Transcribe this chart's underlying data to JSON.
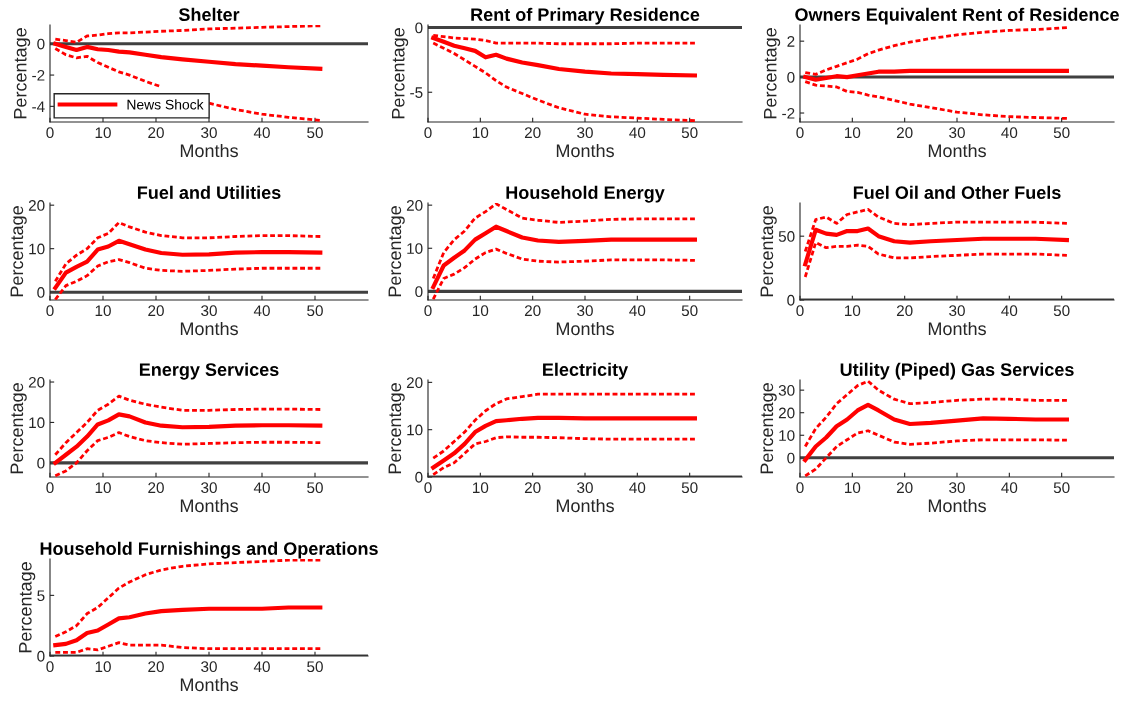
{
  "chart_data": [
    {
      "type": "line",
      "title": "Shelter",
      "xlabel": "Months",
      "ylabel": "Percentage",
      "legend": "bottom left",
      "x": [
        1,
        3,
        5,
        7,
        9,
        11,
        13,
        15,
        18,
        21,
        25,
        30,
        35,
        40,
        45,
        51
      ],
      "xlim": [
        0,
        60
      ],
      "xticks": [
        0,
        10,
        20,
        30,
        40,
        50
      ],
      "ylim": [
        -5,
        1.2
      ],
      "yticks": [
        -4,
        -2,
        0
      ],
      "ref_lines": [
        {
          "axis": "y",
          "value": 0,
          "color": "#404040"
        }
      ],
      "series": [
        {
          "name": "News Shock",
          "color": "#ff0000",
          "line_style": "solid",
          "values": [
            0,
            -0.2,
            -0.4,
            -0.2,
            -0.35,
            -0.4,
            -0.5,
            -0.55,
            -0.7,
            -0.85,
            -1.0,
            -1.15,
            -1.3,
            -1.4,
            -1.5,
            -1.6
          ]
        },
        {
          "color": "#ff0000",
          "line_style": "dashed",
          "values": [
            0.3,
            0.2,
            0.1,
            0.5,
            0.55,
            0.65,
            0.7,
            0.7,
            0.75,
            0.8,
            0.85,
            0.95,
            1.0,
            1.05,
            1.1,
            1.15
          ]
        },
        {
          "color": "#ff0000",
          "line_style": "dashed",
          "values": [
            -0.3,
            -0.7,
            -0.9,
            -0.8,
            -1.2,
            -1.5,
            -1.8,
            -2.0,
            -2.4,
            -2.75,
            null,
            -3.8,
            -4.2,
            -4.5,
            -4.7,
            -4.9
          ]
        }
      ]
    },
    {
      "type": "line",
      "title": "Rent of Primary Residence",
      "xlabel": "Months",
      "ylabel": "Percentage",
      "x": [
        1,
        3,
        5,
        7,
        9,
        11,
        13,
        15,
        18,
        21,
        25,
        30,
        35,
        40,
        45,
        51
      ],
      "xlim": [
        0,
        60
      ],
      "xticks": [
        0,
        10,
        20,
        30,
        40,
        50
      ],
      "ylim": [
        -7.3,
        0.2
      ],
      "yticks": [
        -5,
        0
      ],
      "ref_lines": [
        {
          "axis": "y",
          "value": 0,
          "color": "#404040"
        }
      ],
      "series": [
        {
          "color": "#ff0000",
          "line_style": "solid",
          "values": [
            -0.8,
            -1.1,
            -1.4,
            -1.6,
            -1.8,
            -2.3,
            -2.1,
            -2.4,
            -2.7,
            -2.9,
            -3.2,
            -3.4,
            -3.55,
            -3.6,
            -3.65,
            -3.7
          ]
        },
        {
          "color": "#ff0000",
          "line_style": "dashed",
          "values": [
            -0.6,
            -0.7,
            -0.8,
            -0.85,
            -0.9,
            -1.0,
            -1.2,
            -1.2,
            -1.2,
            -1.2,
            -1.25,
            -1.25,
            -1.25,
            -1.2,
            -1.2,
            -1.2
          ]
        },
        {
          "color": "#ff0000",
          "line_style": "dashed",
          "values": [
            -1.2,
            -1.6,
            -2.0,
            -2.5,
            -3.0,
            -3.5,
            -4.1,
            -4.6,
            -5.1,
            -5.6,
            -6.2,
            -6.7,
            -6.9,
            -7.0,
            -7.1,
            -7.2
          ]
        }
      ]
    },
    {
      "type": "line",
      "title": "Owners Equivalent Rent of Residence",
      "xlabel": "Months",
      "ylabel": "Percentage",
      "x": [
        1,
        3,
        5,
        7,
        9,
        11,
        13,
        15,
        18,
        21,
        25,
        30,
        35,
        40,
        45,
        51
      ],
      "xlim": [
        0,
        60
      ],
      "xticks": [
        0,
        10,
        20,
        30,
        40,
        50
      ],
      "ylim": [
        -2.5,
        2.9
      ],
      "yticks": [
        -2,
        0,
        2
      ],
      "ref_lines": [
        {
          "axis": "y",
          "value": 0,
          "color": "#404040"
        }
      ],
      "series": [
        {
          "color": "#ff0000",
          "line_style": "solid",
          "values": [
            0,
            -0.15,
            -0.05,
            0.05,
            0,
            0.1,
            0.2,
            0.3,
            0.3,
            0.35,
            0.35,
            0.35,
            0.35,
            0.35,
            0.35,
            0.35
          ]
        },
        {
          "color": "#ff0000",
          "line_style": "dashed",
          "values": [
            0.25,
            0.15,
            0.4,
            0.6,
            0.8,
            1.0,
            1.3,
            1.5,
            1.75,
            1.95,
            2.15,
            2.35,
            2.5,
            2.6,
            2.65,
            2.75
          ]
        },
        {
          "color": "#ff0000",
          "line_style": "dashed",
          "values": [
            -0.25,
            -0.45,
            -0.5,
            -0.55,
            -0.8,
            -0.85,
            -1.0,
            -1.1,
            -1.3,
            -1.5,
            -1.7,
            -1.95,
            -2.1,
            -2.2,
            -2.25,
            -2.3
          ]
        }
      ]
    },
    {
      "type": "line",
      "title": "Fuel and Utilities",
      "xlabel": "Months",
      "ylabel": "Percentage",
      "x": [
        1,
        3,
        5,
        7,
        9,
        11,
        13,
        15,
        18,
        21,
        25,
        30,
        35,
        40,
        45,
        51
      ],
      "xlim": [
        0,
        60
      ],
      "xticks": [
        0,
        10,
        20,
        30,
        40,
        50
      ],
      "ylim": [
        -1.8,
        20.5
      ],
      "yticks": [
        0,
        10,
        20
      ],
      "ref_lines": [
        {
          "axis": "y",
          "value": 0,
          "color": "#404040"
        }
      ],
      "series": [
        {
          "color": "#ff0000",
          "line_style": "solid",
          "values": [
            1,
            4.5,
            5.8,
            7,
            9.8,
            10.5,
            11.8,
            11,
            9.8,
            9,
            8.6,
            8.7,
            9.1,
            9.2,
            9.2,
            9.1
          ]
        },
        {
          "color": "#ff0000",
          "line_style": "dashed",
          "values": [
            2.5,
            6.5,
            8.5,
            10,
            12.5,
            13.5,
            16,
            15,
            13.8,
            13,
            12.5,
            12.5,
            12.8,
            13,
            13,
            12.8
          ]
        },
        {
          "color": "#ff0000",
          "line_style": "dashed",
          "values": [
            -1.7,
            1.5,
            2.5,
            3.8,
            6,
            7,
            7.5,
            6.8,
            5.5,
            5,
            4.8,
            5,
            5.3,
            5.5,
            5.5,
            5.5
          ]
        }
      ]
    },
    {
      "type": "line",
      "title": "Household Energy",
      "xlabel": "Months",
      "ylabel": "Percentage",
      "x": [
        1,
        3,
        5,
        7,
        9,
        11,
        13,
        15,
        18,
        21,
        25,
        30,
        35,
        40,
        45,
        51
      ],
      "xlim": [
        0,
        60
      ],
      "xticks": [
        0,
        10,
        20,
        30,
        40,
        50
      ],
      "ylim": [
        -2,
        20.5
      ],
      "yticks": [
        0,
        10,
        20
      ],
      "ref_lines": [
        {
          "axis": "y",
          "value": 0,
          "color": "#404040"
        }
      ],
      "series": [
        {
          "color": "#ff0000",
          "line_style": "solid",
          "values": [
            1,
            6,
            7.8,
            9.5,
            12,
            13.5,
            15,
            14,
            12.5,
            11.8,
            11.5,
            11.7,
            12,
            12,
            12,
            12
          ]
        },
        {
          "color": "#ff0000",
          "line_style": "dashed",
          "values": [
            3,
            9,
            12,
            14,
            17,
            18.5,
            20.3,
            19,
            17,
            16.5,
            16,
            16.3,
            16.7,
            16.8,
            16.8,
            16.8
          ]
        },
        {
          "color": "#ff0000",
          "line_style": "dashed",
          "values": [
            -1.8,
            3,
            4,
            5.5,
            7.5,
            9,
            9.8,
            8.8,
            7.5,
            7,
            6.8,
            7,
            7.3,
            7.3,
            7.3,
            7.2
          ]
        }
      ]
    },
    {
      "type": "line",
      "title": "Fuel Oil and Other Fuels",
      "xlabel": "Months",
      "ylabel": "Percentage",
      "x": [
        1,
        3,
        5,
        7,
        9,
        11,
        13,
        15,
        18,
        21,
        25,
        30,
        35,
        40,
        45,
        51
      ],
      "xlim": [
        0,
        60
      ],
      "xticks": [
        0,
        10,
        20,
        30,
        40,
        50
      ],
      "ylim": [
        0,
        76
      ],
      "yticks": [
        0,
        50
      ],
      "ref_lines": [
        {
          "axis": "y",
          "value": 0,
          "color": "#404040"
        }
      ],
      "series": [
        {
          "color": "#ff0000",
          "line_style": "solid",
          "values": [
            28,
            55,
            52,
            51,
            54,
            54,
            56,
            50,
            46,
            45,
            46,
            47,
            48,
            48,
            48,
            47
          ]
        },
        {
          "color": "#ff0000",
          "line_style": "dashed",
          "values": [
            38,
            63,
            65,
            60,
            67,
            69,
            71,
            65,
            60,
            59,
            60,
            61,
            61,
            61,
            61,
            60
          ]
        },
        {
          "color": "#ff0000",
          "line_style": "dashed",
          "values": [
            18,
            45,
            41,
            42,
            42,
            43,
            42,
            36,
            33,
            33,
            34,
            35,
            36,
            36,
            36,
            35
          ]
        }
      ]
    },
    {
      "type": "line",
      "title": "Energy Services",
      "xlabel": "Months",
      "ylabel": "Percentage",
      "x": [
        1,
        3,
        5,
        7,
        9,
        11,
        13,
        15,
        18,
        21,
        25,
        30,
        35,
        40,
        45,
        51
      ],
      "xlim": [
        0,
        60
      ],
      "xticks": [
        0,
        10,
        20,
        30,
        40,
        50
      ],
      "ylim": [
        -3.5,
        20.5
      ],
      "yticks": [
        0,
        10,
        20
      ],
      "ref_lines": [
        {
          "axis": "y",
          "value": 0,
          "color": "#404040"
        }
      ],
      "series": [
        {
          "color": "#ff0000",
          "line_style": "solid",
          "values": [
            0,
            2,
            4,
            6.5,
            9.5,
            10.5,
            12,
            11.5,
            10,
            9.2,
            8.8,
            8.9,
            9.2,
            9.3,
            9.3,
            9.2
          ]
        },
        {
          "color": "#ff0000",
          "line_style": "dashed",
          "values": [
            2,
            5,
            7.5,
            10,
            13,
            14.5,
            16.5,
            15.5,
            14.5,
            13.8,
            13,
            13,
            13.2,
            13.3,
            13.3,
            13.2
          ]
        },
        {
          "color": "#ff0000",
          "line_style": "dashed",
          "values": [
            -3.2,
            -2,
            0,
            3,
            5.5,
            6.3,
            7.5,
            6.5,
            5.5,
            5,
            4.6,
            4.8,
            5,
            5.1,
            5.1,
            5
          ]
        }
      ]
    },
    {
      "type": "line",
      "title": "Electricity",
      "xlabel": "Months",
      "ylabel": "Percentage",
      "x": [
        1,
        3,
        5,
        7,
        9,
        11,
        13,
        15,
        18,
        21,
        25,
        30,
        35,
        40,
        45,
        51
      ],
      "xlim": [
        0,
        60
      ],
      "xticks": [
        0,
        10,
        20,
        30,
        40,
        50
      ],
      "ylim": [
        0,
        20.5
      ],
      "yticks": [
        0,
        10,
        20
      ],
      "ref_lines": [
        {
          "axis": "y",
          "value": 0,
          "color": "#404040"
        }
      ],
      "series": [
        {
          "color": "#ff0000",
          "line_style": "solid",
          "values": [
            2,
            3.5,
            5,
            7,
            9.5,
            10.8,
            11.8,
            12,
            12.3,
            12.5,
            12.5,
            12.4,
            12.4,
            12.4,
            12.4,
            12.4
          ]
        },
        {
          "color": "#ff0000",
          "line_style": "dashed",
          "values": [
            4,
            5.5,
            7.5,
            9.5,
            12,
            14,
            15.5,
            16.5,
            17,
            17.5,
            17.5,
            17.5,
            17.5,
            17.5,
            17.5,
            17.5
          ]
        },
        {
          "color": "#ff0000",
          "line_style": "dashed",
          "values": [
            0.5,
            2,
            3,
            5,
            7,
            7.5,
            8.3,
            8.5,
            8.4,
            8.4,
            8.3,
            8.1,
            8,
            8,
            8,
            8
          ]
        }
      ]
    },
    {
      "type": "line",
      "title": "Utility (Piped) Gas Services",
      "xlabel": "Months",
      "ylabel": "Percentage",
      "x": [
        1,
        3,
        5,
        7,
        9,
        11,
        13,
        15,
        18,
        21,
        25,
        30,
        35,
        40,
        45,
        51
      ],
      "xlim": [
        0,
        60
      ],
      "xticks": [
        0,
        10,
        20,
        30,
        40,
        50
      ],
      "ylim": [
        -8.5,
        34.5
      ],
      "yticks": [
        0,
        10,
        20,
        30
      ],
      "ref_lines": [
        {
          "axis": "y",
          "value": 0,
          "color": "#404040"
        }
      ],
      "series": [
        {
          "color": "#ff0000",
          "line_style": "solid",
          "values": [
            -1,
            5,
            9,
            14,
            17,
            21,
            23.5,
            21,
            17,
            15,
            15.5,
            16.5,
            17.5,
            17.3,
            17,
            17
          ]
        },
        {
          "color": "#ff0000",
          "line_style": "dashed",
          "values": [
            5,
            13,
            18,
            24,
            28,
            32,
            34,
            30,
            26,
            24,
            24.5,
            25.5,
            26,
            26,
            25.5,
            25.5
          ]
        },
        {
          "color": "#ff0000",
          "line_style": "dashed",
          "values": [
            -8,
            -5,
            0,
            5,
            8,
            11,
            12,
            10,
            7,
            6,
            6.5,
            7.5,
            8,
            8,
            8,
            7.8
          ]
        }
      ]
    },
    {
      "type": "line",
      "title": "Household Furnishings and Operations",
      "xlabel": "Months",
      "ylabel": "Percentage",
      "x": [
        1,
        3,
        5,
        7,
        9,
        11,
        13,
        15,
        18,
        21,
        25,
        30,
        35,
        40,
        45,
        51
      ],
      "xlim": [
        0,
        60
      ],
      "xticks": [
        0,
        10,
        20,
        30,
        40,
        50
      ],
      "ylim": [
        0,
        8
      ],
      "yticks": [
        0,
        5
      ],
      "ref_lines": [
        {
          "axis": "y",
          "value": 0,
          "color": "#404040"
        }
      ],
      "series": [
        {
          "color": "#ff0000",
          "line_style": "solid",
          "values": [
            0.9,
            1.0,
            1.3,
            1.9,
            2.1,
            2.6,
            3.1,
            3.2,
            3.5,
            3.7,
            3.8,
            3.9,
            3.9,
            3.9,
            4.0,
            4.0
          ]
        },
        {
          "color": "#ff0000",
          "line_style": "dashed",
          "values": [
            1.6,
            2.0,
            2.5,
            3.5,
            4.0,
            4.8,
            5.6,
            6.1,
            6.7,
            7.1,
            7.4,
            7.6,
            7.7,
            7.8,
            7.9,
            7.9
          ]
        },
        {
          "color": "#ff0000",
          "line_style": "dashed",
          "values": [
            0.3,
            0.3,
            0.3,
            0.6,
            0.5,
            0.8,
            1.1,
            0.9,
            0.9,
            0.9,
            0.7,
            0.6,
            0.6,
            0.6,
            0.6,
            0.6
          ]
        }
      ]
    }
  ]
}
